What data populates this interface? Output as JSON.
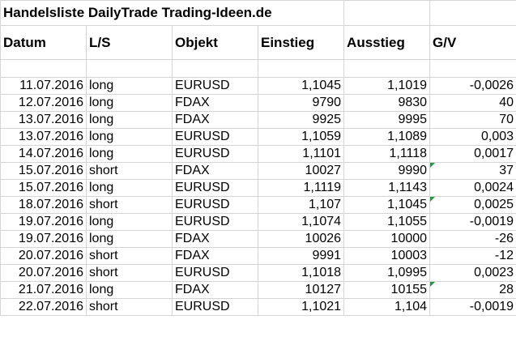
{
  "title": "Handelsliste DailyTrade Trading-Ideen.de",
  "headers": [
    "Datum",
    "L/S",
    "Objekt",
    "Einstieg",
    "Ausstieg",
    "G/V"
  ],
  "flag_color": "#1f9d3a",
  "rows": [
    {
      "datum": "11.07.2016",
      "ls": "long",
      "objekt": "EURUSD",
      "einstieg": "1,1045",
      "ausstieg": "1,1019",
      "gv": "-0,0026",
      "flag": false
    },
    {
      "datum": "12.07.2016",
      "ls": "long",
      "objekt": "FDAX",
      "einstieg": "9790",
      "ausstieg": "9830",
      "gv": "40",
      "flag": false
    },
    {
      "datum": "13.07.2016",
      "ls": "long",
      "objekt": "FDAX",
      "einstieg": "9925",
      "ausstieg": "9995",
      "gv": "70",
      "flag": false
    },
    {
      "datum": "13.07.2016",
      "ls": "long",
      "objekt": "EURUSD",
      "einstieg": "1,1059",
      "ausstieg": "1,1089",
      "gv": "0,003",
      "flag": false
    },
    {
      "datum": "14.07.2016",
      "ls": "long",
      "objekt": "EURUSD",
      "einstieg": "1,1101",
      "ausstieg": "1,1118",
      "gv": "0,0017",
      "flag": false
    },
    {
      "datum": "15.07.2016",
      "ls": "short",
      "objekt": "FDAX",
      "einstieg": "10027",
      "ausstieg": "9990",
      "gv": "37",
      "flag": true
    },
    {
      "datum": "15.07.2016",
      "ls": "long",
      "objekt": "EURUSD",
      "einstieg": "1,1119",
      "ausstieg": "1,1143",
      "gv": "0,0024",
      "flag": false
    },
    {
      "datum": "18.07.2016",
      "ls": "short",
      "objekt": "EURUSD",
      "einstieg": "1,107",
      "ausstieg": "1,1045",
      "gv": "0,0025",
      "flag": true
    },
    {
      "datum": "19.07.2016",
      "ls": "long",
      "objekt": "EURUSD",
      "einstieg": "1,1074",
      "ausstieg": "1,1055",
      "gv": "-0,0019",
      "flag": false
    },
    {
      "datum": "19.07.2016",
      "ls": "long",
      "objekt": "FDAX",
      "einstieg": "10026",
      "ausstieg": "10000",
      "gv": "-26",
      "flag": false
    },
    {
      "datum": "20.07.2016",
      "ls": "short",
      "objekt": "FDAX",
      "einstieg": "9991",
      "ausstieg": "10003",
      "gv": "-12",
      "flag": false
    },
    {
      "datum": "20.07.2016",
      "ls": "short",
      "objekt": "EURUSD",
      "einstieg": "1,1018",
      "ausstieg": "1,0995",
      "gv": "0,0023",
      "flag": false
    },
    {
      "datum": "21.07.2016",
      "ls": "long",
      "objekt": "FDAX",
      "einstieg": "10127",
      "ausstieg": "10155",
      "gv": "28",
      "flag": true
    },
    {
      "datum": "22.07.2016",
      "ls": "short",
      "objekt": "EURUSD",
      "einstieg": "1,1021",
      "ausstieg": "1,104",
      "gv": "-0,0019",
      "flag": false
    }
  ]
}
